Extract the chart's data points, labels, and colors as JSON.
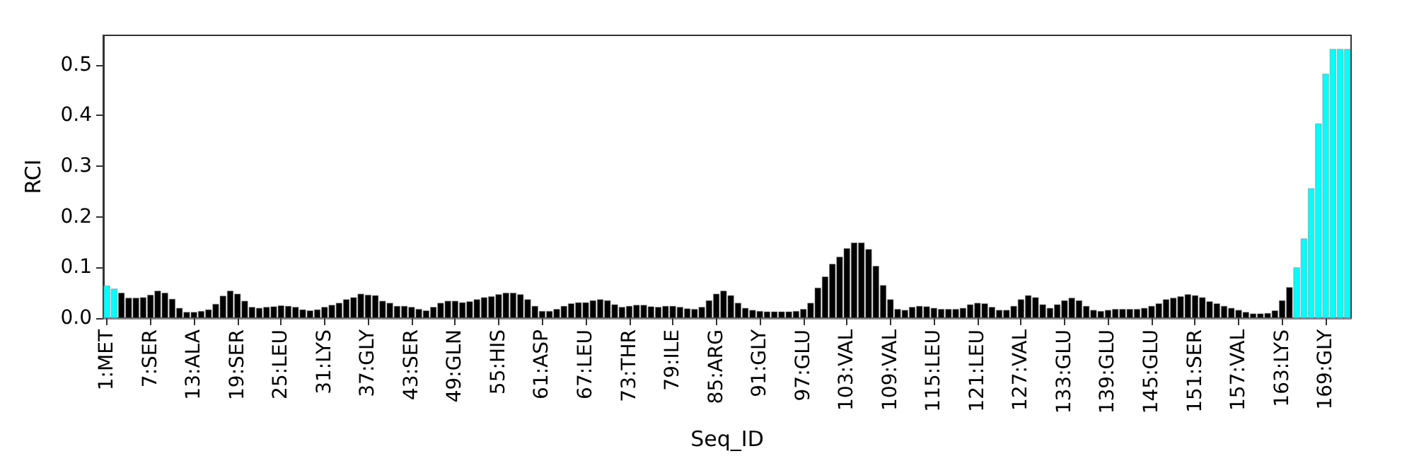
{
  "chart_data": {
    "type": "bar",
    "xlabel": "Seq_ID",
    "ylabel": "RCI",
    "categories": [
      "1:MET",
      null,
      null,
      null,
      null,
      null,
      "7:SER",
      null,
      null,
      null,
      null,
      null,
      "13:ALA",
      null,
      null,
      null,
      null,
      null,
      "19:SER",
      null,
      null,
      null,
      null,
      null,
      "25:LEU",
      null,
      null,
      null,
      null,
      null,
      "31:LYS",
      null,
      null,
      null,
      null,
      null,
      "37:GLY",
      null,
      null,
      null,
      null,
      null,
      "43:SER",
      null,
      null,
      null,
      null,
      null,
      "49:GLN",
      null,
      null,
      null,
      null,
      null,
      "55:HIS",
      null,
      null,
      null,
      null,
      null,
      "61:ASP",
      null,
      null,
      null,
      null,
      null,
      "67:LEU",
      null,
      null,
      null,
      null,
      null,
      "73:THR",
      null,
      null,
      null,
      null,
      null,
      "79:ILE",
      null,
      null,
      null,
      null,
      null,
      "85:ARG",
      null,
      null,
      null,
      null,
      null,
      "91:GLY",
      null,
      null,
      null,
      null,
      null,
      "97:GLU",
      null,
      null,
      null,
      null,
      null,
      "103:VAL",
      null,
      null,
      null,
      null,
      null,
      "109:VAL",
      null,
      null,
      null,
      null,
      null,
      "115:LEU",
      null,
      null,
      null,
      null,
      null,
      "121:LEU",
      null,
      null,
      null,
      null,
      null,
      "127:VAL",
      null,
      null,
      null,
      null,
      null,
      "133:GLU",
      null,
      null,
      null,
      null,
      null,
      "139:GLU",
      null,
      null,
      null,
      null,
      null,
      "145:GLU",
      null,
      null,
      null,
      null,
      null,
      "151:SER",
      null,
      null,
      null,
      null,
      null,
      "157:VAL",
      null,
      null,
      null,
      null,
      null,
      "163:LYS",
      null,
      null,
      null,
      null,
      null,
      "169:GLY",
      null,
      null,
      null
    ],
    "values": [
      0.064,
      0.058,
      0.05,
      0.04,
      0.04,
      0.041,
      0.046,
      0.054,
      0.05,
      0.038,
      0.02,
      0.012,
      0.012,
      0.014,
      0.017,
      0.028,
      0.044,
      0.054,
      0.048,
      0.034,
      0.022,
      0.02,
      0.022,
      0.023,
      0.025,
      0.024,
      0.022,
      0.017,
      0.015,
      0.017,
      0.022,
      0.026,
      0.03,
      0.037,
      0.041,
      0.048,
      0.046,
      0.045,
      0.034,
      0.03,
      0.024,
      0.024,
      0.022,
      0.018,
      0.015,
      0.022,
      0.03,
      0.034,
      0.034,
      0.031,
      0.033,
      0.037,
      0.041,
      0.043,
      0.047,
      0.05,
      0.05,
      0.047,
      0.037,
      0.024,
      0.014,
      0.014,
      0.018,
      0.024,
      0.029,
      0.031,
      0.031,
      0.035,
      0.037,
      0.035,
      0.027,
      0.022,
      0.024,
      0.026,
      0.026,
      0.023,
      0.022,
      0.024,
      0.024,
      0.022,
      0.019,
      0.018,
      0.022,
      0.035,
      0.048,
      0.054,
      0.045,
      0.03,
      0.02,
      0.016,
      0.014,
      0.013,
      0.013,
      0.013,
      0.013,
      0.014,
      0.018,
      0.03,
      0.06,
      0.082,
      0.107,
      0.121,
      0.138,
      0.149,
      0.149,
      0.136,
      0.103,
      0.065,
      0.037,
      0.018,
      0.016,
      0.022,
      0.024,
      0.023,
      0.02,
      0.018,
      0.018,
      0.018,
      0.02,
      0.027,
      0.03,
      0.029,
      0.022,
      0.016,
      0.016,
      0.024,
      0.037,
      0.045,
      0.041,
      0.027,
      0.02,
      0.027,
      0.035,
      0.04,
      0.035,
      0.024,
      0.016,
      0.014,
      0.016,
      0.018,
      0.018,
      0.018,
      0.018,
      0.02,
      0.024,
      0.029,
      0.037,
      0.04,
      0.043,
      0.047,
      0.045,
      0.041,
      0.033,
      0.029,
      0.024,
      0.02,
      0.016,
      0.012,
      0.009,
      0.009,
      0.01,
      0.015,
      0.035,
      0.061,
      0.1,
      0.157,
      0.256,
      0.384,
      0.482,
      0.531,
      0.531,
      0.531
    ],
    "colors": [
      "#00ffff",
      "#00ffff",
      "#000000",
      "#000000",
      "#000000",
      "#000000",
      "#000000",
      "#000000",
      "#000000",
      "#000000",
      "#000000",
      "#000000",
      "#000000",
      "#000000",
      "#000000",
      "#000000",
      "#000000",
      "#000000",
      "#000000",
      "#000000",
      "#000000",
      "#000000",
      "#000000",
      "#000000",
      "#000000",
      "#000000",
      "#000000",
      "#000000",
      "#000000",
      "#000000",
      "#000000",
      "#000000",
      "#000000",
      "#000000",
      "#000000",
      "#000000",
      "#000000",
      "#000000",
      "#000000",
      "#000000",
      "#000000",
      "#000000",
      "#000000",
      "#000000",
      "#000000",
      "#000000",
      "#000000",
      "#000000",
      "#000000",
      "#000000",
      "#000000",
      "#000000",
      "#000000",
      "#000000",
      "#000000",
      "#000000",
      "#000000",
      "#000000",
      "#000000",
      "#000000",
      "#000000",
      "#000000",
      "#000000",
      "#000000",
      "#000000",
      "#000000",
      "#000000",
      "#000000",
      "#000000",
      "#000000",
      "#000000",
      "#000000",
      "#000000",
      "#000000",
      "#000000",
      "#000000",
      "#000000",
      "#000000",
      "#000000",
      "#000000",
      "#000000",
      "#000000",
      "#000000",
      "#000000",
      "#000000",
      "#000000",
      "#000000",
      "#000000",
      "#000000",
      "#000000",
      "#000000",
      "#000000",
      "#000000",
      "#000000",
      "#000000",
      "#000000",
      "#000000",
      "#000000",
      "#000000",
      "#000000",
      "#000000",
      "#000000",
      "#000000",
      "#000000",
      "#000000",
      "#000000",
      "#000000",
      "#000000",
      "#000000",
      "#000000",
      "#000000",
      "#000000",
      "#000000",
      "#000000",
      "#000000",
      "#000000",
      "#000000",
      "#000000",
      "#000000",
      "#000000",
      "#000000",
      "#000000",
      "#000000",
      "#000000",
      "#000000",
      "#000000",
      "#000000",
      "#000000",
      "#000000",
      "#000000",
      "#000000",
      "#000000",
      "#000000",
      "#000000",
      "#000000",
      "#000000",
      "#000000",
      "#000000",
      "#000000",
      "#000000",
      "#000000",
      "#000000",
      "#000000",
      "#000000",
      "#000000",
      "#000000",
      "#000000",
      "#000000",
      "#000000",
      "#000000",
      "#000000",
      "#000000",
      "#000000",
      "#000000",
      "#000000",
      "#000000",
      "#000000",
      "#000000",
      "#000000",
      "#000000",
      "#000000",
      "#000000",
      "#000000",
      "#000000",
      "#00ffff",
      "#00ffff",
      "#00ffff",
      "#00ffff",
      "#00ffff",
      "#00ffff",
      "#00ffff",
      "#00ffff"
    ],
    "ylim": [
      0,
      0.558
    ],
    "yticks": [
      {
        "value": 0,
        "label": "0.0"
      },
      {
        "value": 0.1,
        "label": "0.1"
      },
      {
        "value": 0.2,
        "label": "0.2"
      },
      {
        "value": 0.3,
        "label": "0.3"
      },
      {
        "value": 0.4,
        "label": "0.4"
      },
      {
        "value": 0.5,
        "label": "0.5"
      }
    ],
    "grid": false
  }
}
